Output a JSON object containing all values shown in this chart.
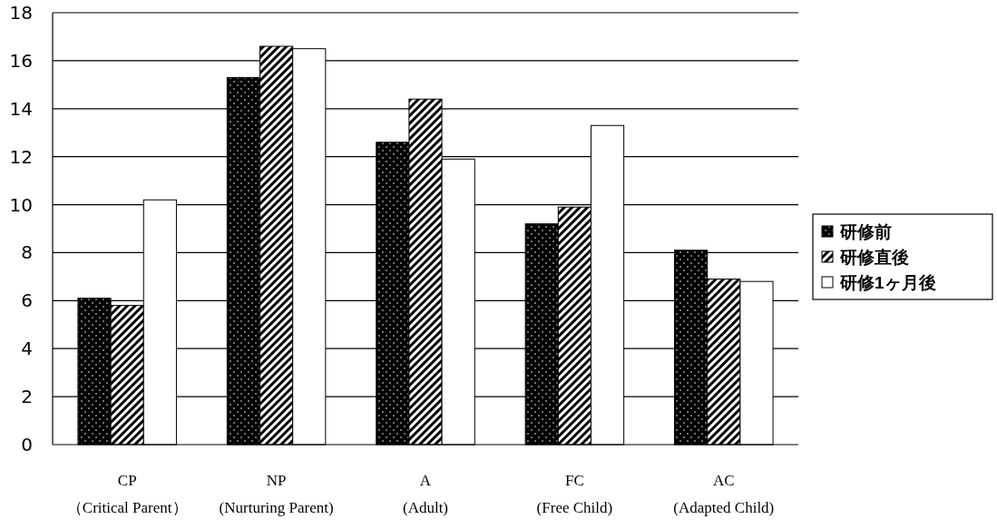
{
  "chart_data": {
    "type": "bar",
    "categories": [
      "CP\n（Critical Parent）",
      "NP\n(Nurturing Parent)",
      "A\n(Adult)",
      "FC\n(Free Child)",
      "AC\n(Adapted Child)"
    ],
    "series": [
      {
        "name": "研修前",
        "color": "#000000",
        "values": [
          6.1,
          15.3,
          12.6,
          9.2,
          8.1
        ]
      },
      {
        "name": "研修直後",
        "color": "#000000",
        "values": [
          5.8,
          16.6,
          14.4,
          9.9,
          6.9
        ]
      },
      {
        "name": "研修1ヶ月後",
        "color": "#ffffff",
        "values": [
          10.2,
          16.5,
          11.9,
          13.3,
          6.8
        ]
      }
    ],
    "ylim": [
      0,
      18
    ],
    "yticks": [
      0,
      2,
      4,
      6,
      8,
      10,
      12,
      14,
      16,
      18
    ],
    "grid": "y",
    "legend": "right"
  }
}
